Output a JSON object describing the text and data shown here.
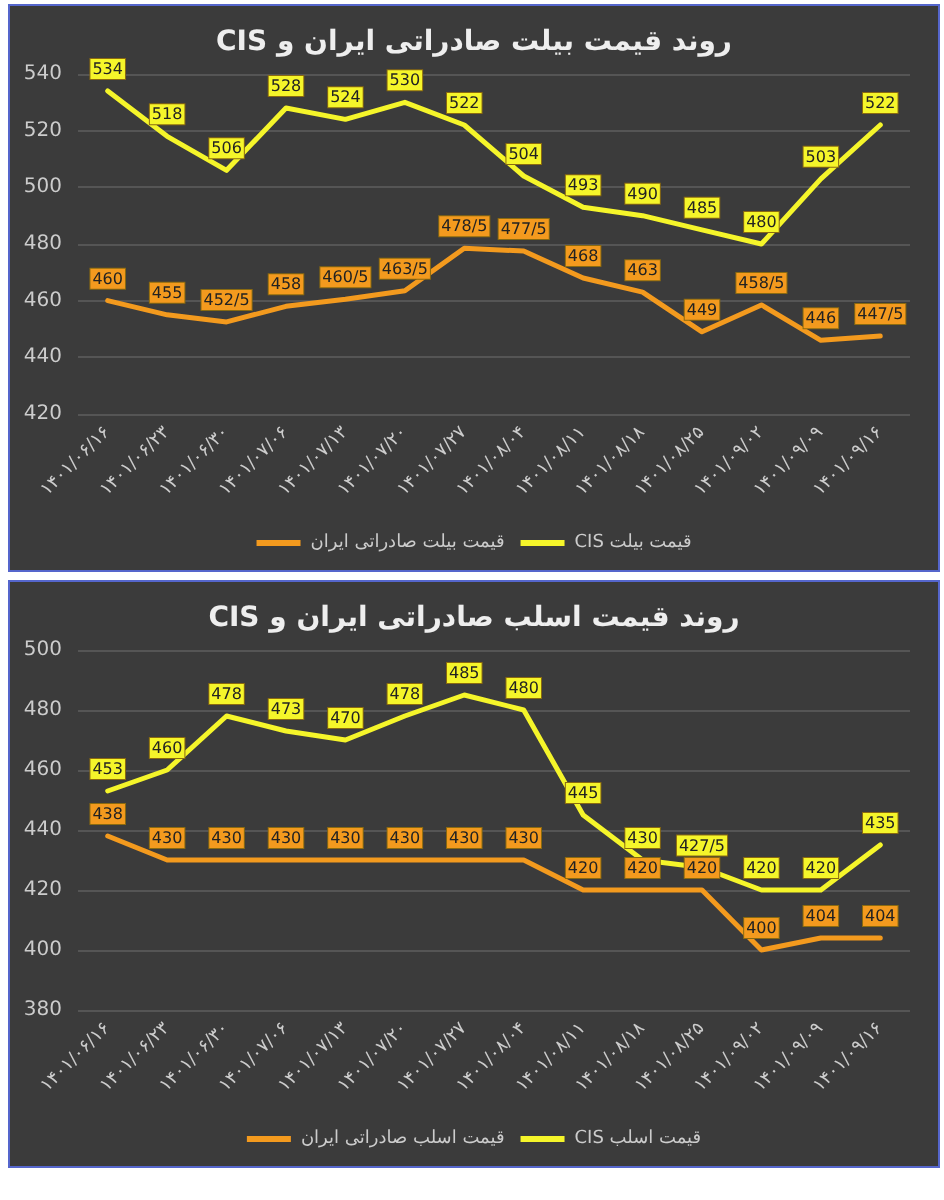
{
  "chart_data": [
    {
      "type": "line",
      "title": "روند قیمت بیلت صادراتی ایران و CIS",
      "categories": [
        "۱۴۰۱/۰۶/۱۶",
        "۱۴۰۱/۰۶/۲۳",
        "۱۴۰۱/۰۶/۳۰",
        "۱۴۰۱/۰۷/۰۶",
        "۱۴۰۱/۰۷/۱۳",
        "۱۴۰۱/۰۷/۲۰",
        "۱۴۰۱/۰۷/۲۷",
        "۱۴۰۱/۰۸/۰۴",
        "۱۴۰۱/۰۸/۱۱",
        "۱۴۰۱/۰۸/۱۸",
        "۱۴۰۱/۰۸/۲۵",
        "۱۴۰۱/۰۹/۰۲",
        "۱۴۰۱/۰۹/۰۹",
        "۱۴۰۱/۰۹/۱۶"
      ],
      "series": [
        {
          "name": "قیمت بیلت صادراتی ایران",
          "color": "#f39a1e",
          "values": [
            460,
            455,
            452.5,
            458,
            460.5,
            463.5,
            478.5,
            477.5,
            468,
            463,
            449,
            458.5,
            446,
            447.5
          ],
          "value_labels": [
            "460",
            "455",
            "452/5",
            "458",
            "460/5",
            "463/5",
            "478/5",
            "477/5",
            "468",
            "463",
            "449",
            "458/5",
            "446",
            "447/5"
          ]
        },
        {
          "name": "قیمت بیلت CIS",
          "color": "#f5f52a",
          "values": [
            534,
            518,
            506,
            528,
            524,
            530,
            522,
            504,
            493,
            490,
            485,
            480,
            503,
            522
          ],
          "value_labels": [
            "534",
            "518",
            "506",
            "528",
            "524",
            "530",
            "522",
            "504",
            "493",
            "490",
            "485",
            "480",
            "503",
            "522"
          ]
        }
      ],
      "ylim": [
        420,
        540
      ],
      "yticks": [
        420,
        440,
        460,
        480,
        500,
        520,
        540
      ],
      "grid": "y",
      "legend": "bottom",
      "marker": "none",
      "line_style": "solid"
    },
    {
      "type": "line",
      "title": "روند قیمت اسلب صادراتی ایران و CIS",
      "categories": [
        "۱۴۰۱/۰۶/۱۶",
        "۱۴۰۱/۰۶/۲۳",
        "۱۴۰۱/۰۶/۳۰",
        "۱۴۰۱/۰۷/۰۶",
        "۱۴۰۱/۰۷/۱۳",
        "۱۴۰۱/۰۷/۲۰",
        "۱۴۰۱/۰۷/۲۷",
        "۱۴۰۱/۰۸/۰۴",
        "۱۴۰۱/۰۸/۱۱",
        "۱۴۰۱/۰۸/۱۸",
        "۱۴۰۱/۰۸/۲۵",
        "۱۴۰۱/۰۹/۰۲",
        "۱۴۰۱/۰۹/۰۹",
        "۱۴۰۱/۰۹/۱۶"
      ],
      "series": [
        {
          "name": "قیمت اسلب صادراتی ایران",
          "color": "#f39a1e",
          "values": [
            438,
            430,
            430,
            430,
            430,
            430,
            430,
            430,
            420,
            420,
            420,
            400,
            404,
            404
          ],
          "value_labels": [
            "438",
            "430",
            "430",
            "430",
            "430",
            "430",
            "430",
            "430",
            "420",
            "420",
            "420",
            "400",
            "404",
            "404"
          ]
        },
        {
          "name": "قیمت اسلب CIS",
          "color": "#f5f52a",
          "values": [
            453,
            460,
            478,
            473,
            470,
            478,
            485,
            480,
            445,
            430,
            427.5,
            420,
            420,
            435
          ],
          "value_labels": [
            "453",
            "460",
            "478",
            "473",
            "470",
            "478",
            "485",
            "480",
            "445",
            "430",
            "427/5",
            "420",
            "420",
            "435"
          ]
        }
      ],
      "ylim": [
        380,
        500
      ],
      "yticks": [
        380,
        400,
        420,
        440,
        460,
        480,
        500
      ],
      "grid": "y",
      "legend": "bottom",
      "marker": "none",
      "line_style": "solid"
    }
  ]
}
